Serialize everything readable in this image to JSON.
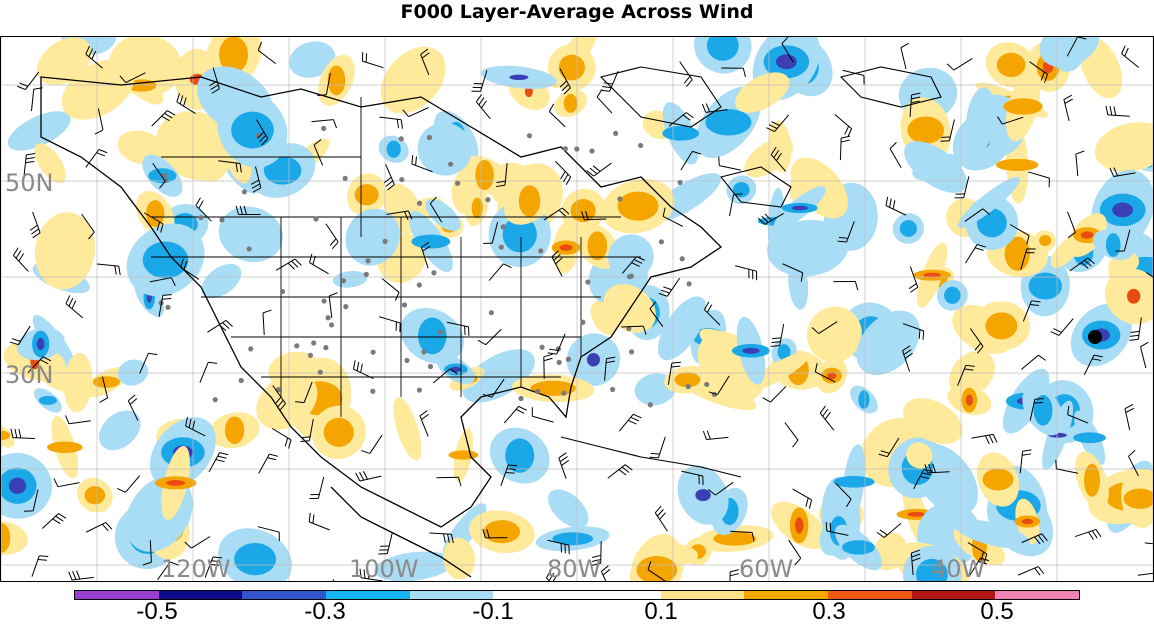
{
  "title": "F000 Layer-Average Across Wind",
  "latitude_labels": [
    "50N",
    "30N"
  ],
  "longitude_labels": [
    "120W",
    "100W",
    "80W",
    "60W",
    "40W"
  ],
  "colorbar": {
    "colors": [
      "#9b3fd1",
      "#0b0b8a",
      "#3355cc",
      "#14b4f0",
      "#a6dcf5",
      "#ffffff",
      "#ffffff",
      "#ffe38a",
      "#f5a800",
      "#f05a14",
      "#b31414",
      "#f082b4"
    ],
    "labels": [
      "-0.5",
      "-0.3",
      "-0.1",
      "0.1",
      "0.3",
      "0.5"
    ]
  },
  "colors": {
    "neg_strong": "#3a3fb5",
    "neg_mid": "#1aa8e8",
    "neg_light": "#a9dcf5",
    "pos_light": "#ffe99a",
    "pos_mid": "#f5a500",
    "pos_strong": "#ea4c10",
    "grid": "#bfbfbf"
  },
  "map_features": [
    "coastline-icon",
    "state-borders-icon",
    "wind-barbs-icon",
    "station-dots-icon",
    "marker-dot-icon"
  ]
}
